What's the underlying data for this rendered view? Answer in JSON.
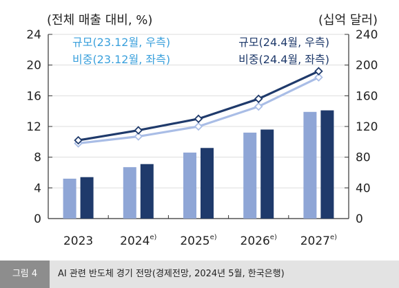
{
  "chart_data": {
    "type": "bar",
    "title": "",
    "left_axis_label": "(전체 매출 대비, %)",
    "right_axis_label": "(십억 달러)",
    "categories": [
      "2023",
      "2024",
      "2025",
      "2026",
      "2027"
    ],
    "category_superscripts": [
      "",
      "e)",
      "e)",
      "e)",
      "e)"
    ],
    "left_ylim": [
      0,
      24
    ],
    "left_ticks": [
      "0",
      "4",
      "8",
      "12",
      "16",
      "20",
      "24"
    ],
    "right_ylim": [
      0,
      240
    ],
    "right_ticks": [
      "0",
      "40",
      "80",
      "120",
      "160",
      "200",
      "240"
    ],
    "grid": true,
    "legend_placement": "top",
    "series": [
      {
        "name": "규모(23.12월, 우측)",
        "kind": "bar",
        "axis": "right",
        "color": "#8fa6d6",
        "values": [
          52,
          67,
          86,
          112,
          139
        ]
      },
      {
        "name": "규모(24.4월, 우측)",
        "kind": "bar",
        "axis": "right",
        "color": "#1f3a6b",
        "values": [
          54,
          71,
          92,
          116,
          141
        ]
      },
      {
        "name": "비중(23.12월, 좌측)",
        "kind": "line",
        "axis": "left",
        "color": "#a9bde6",
        "values": [
          9.8,
          10.7,
          12.0,
          14.6,
          18.4
        ]
      },
      {
        "name": "비중(24.4월, 좌측)",
        "kind": "line",
        "axis": "left",
        "color": "#1f3a6b",
        "values": [
          10.2,
          11.5,
          13.0,
          15.6,
          19.2
        ]
      }
    ]
  },
  "caption": {
    "label": "그림 4",
    "text": "AI 관련 반도체 경기 전망(경제전망, 2024년 5월, 한국은행)"
  },
  "colors": {
    "legend_light": "#3aa0dc",
    "legend_dark": "#1f3a6b",
    "axis": "#333333",
    "grid": "#dddddd"
  }
}
